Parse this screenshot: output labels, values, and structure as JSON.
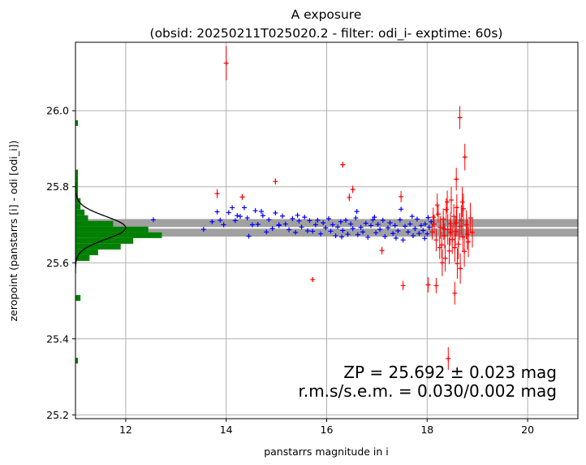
{
  "chart_data": {
    "type": "scatter",
    "title": "A exposure",
    "subtitle": "(obsid: 20250211T025020.2 - filter: odi_i- exptime: 60s)",
    "xlabel": "panstarrs magnitude in i",
    "ylabel": "zeropoint (panstarrs [i] - odi [odi_i])",
    "xlim": [
      11.0,
      21.0
    ],
    "ylim": [
      25.19,
      26.18
    ],
    "xticks": [
      "12",
      "14",
      "16",
      "18",
      "20"
    ],
    "yticks": [
      "25.2",
      "25.4",
      "25.6",
      "25.8",
      "26.0"
    ],
    "grid": true,
    "zeropoint": 25.692,
    "zeropoint_error": 0.023,
    "annotation_lines": [
      "ZP = 25.692 ± 0.023 mag",
      "r.m.s/s.e.m. = 0.030/0.002 mag"
    ],
    "colors": {
      "used_points": "#0000ff",
      "rejected_points": "#ff0000",
      "histogram": "#008000",
      "gaussian": "#000000",
      "band": "#a0a0a0",
      "zp_line": "#ffffff",
      "grid": "#b0b0b0"
    },
    "series": [
      {
        "values": [
          [
            12.55,
            25.713
          ],
          [
            13.55,
            25.688
          ],
          [
            13.72,
            25.708
          ],
          [
            13.82,
            25.734
          ],
          [
            13.88,
            25.712
          ],
          [
            13.95,
            25.7
          ],
          [
            14.05,
            25.732
          ],
          [
            14.12,
            25.745
          ],
          [
            14.18,
            25.711
          ],
          [
            14.22,
            25.724
          ],
          [
            14.28,
            25.722
          ],
          [
            14.36,
            25.745
          ],
          [
            14.42,
            25.718
          ],
          [
            14.45,
            25.67
          ],
          [
            14.52,
            25.7
          ],
          [
            14.58,
            25.737
          ],
          [
            14.63,
            25.701
          ],
          [
            14.7,
            25.735
          ],
          [
            14.73,
            25.724
          ],
          [
            14.8,
            25.681
          ],
          [
            14.85,
            25.713
          ],
          [
            14.92,
            25.69
          ],
          [
            14.98,
            25.731
          ],
          [
            15.05,
            25.698
          ],
          [
            15.12,
            25.723
          ],
          [
            15.18,
            25.702
          ],
          [
            15.25,
            25.687
          ],
          [
            15.32,
            25.716
          ],
          [
            15.38,
            25.68
          ],
          [
            15.45,
            25.71
          ],
          [
            15.5,
            25.694
          ],
          [
            15.56,
            25.72
          ],
          [
            15.62,
            25.684
          ],
          [
            15.66,
            25.711
          ],
          [
            15.72,
            25.683
          ],
          [
            15.78,
            25.7
          ],
          [
            15.82,
            25.712
          ],
          [
            15.88,
            25.676
          ],
          [
            15.93,
            25.705
          ],
          [
            15.98,
            25.692
          ],
          [
            16.04,
            25.716
          ],
          [
            16.08,
            25.683
          ],
          [
            16.12,
            25.7
          ],
          [
            16.18,
            25.671
          ],
          [
            16.22,
            25.694
          ],
          [
            16.28,
            25.708
          ],
          [
            16.32,
            25.685
          ],
          [
            16.38,
            25.712
          ],
          [
            16.42,
            25.675
          ],
          [
            16.48,
            25.702
          ],
          [
            16.52,
            25.69
          ],
          [
            16.58,
            25.718
          ],
          [
            16.62,
            25.674
          ],
          [
            16.68,
            25.693
          ],
          [
            16.72,
            25.681
          ],
          [
            16.78,
            25.704
          ],
          [
            16.82,
            25.667
          ],
          [
            16.88,
            25.698
          ],
          [
            16.92,
            25.713
          ],
          [
            16.98,
            25.679
          ],
          [
            17.02,
            25.701
          ],
          [
            17.06,
            25.688
          ],
          [
            17.12,
            25.712
          ],
          [
            17.16,
            25.669
          ],
          [
            17.22,
            25.692
          ],
          [
            17.26,
            25.705
          ],
          [
            17.32,
            25.677
          ],
          [
            17.36,
            25.698
          ],
          [
            17.42,
            25.684
          ],
          [
            17.46,
            25.713
          ],
          [
            17.52,
            25.66
          ],
          [
            17.56,
            25.696
          ],
          [
            17.62,
            25.681
          ],
          [
            17.66,
            25.702
          ],
          [
            17.72,
            25.671
          ],
          [
            17.76,
            25.69
          ],
          [
            17.8,
            25.715
          ],
          [
            17.84,
            25.677
          ],
          [
            17.88,
            25.698
          ],
          [
            17.92,
            25.685
          ],
          [
            17.96,
            25.702
          ],
          [
            18.0,
            25.676
          ],
          [
            18.04,
            25.693
          ],
          [
            18.08,
            25.708
          ],
          [
            15.05,
            25.7
          ],
          [
            15.42,
            25.725
          ],
          [
            16.3,
            25.668
          ],
          [
            16.95,
            25.72
          ],
          [
            17.38,
            25.665
          ],
          [
            17.7,
            25.722
          ],
          [
            17.95,
            25.664
          ],
          [
            18.02,
            25.719
          ],
          [
            17.48,
            25.741
          ],
          [
            16.6,
            25.735
          ]
        ]
      },
      {
        "values": [
          [
            14.0,
            26.125,
            0.045
          ],
          [
            13.82,
            25.782,
            0.012
          ],
          [
            14.32,
            25.773,
            0.008
          ],
          [
            14.98,
            25.814,
            0.008
          ],
          [
            15.72,
            25.556,
            0.006
          ],
          [
            16.32,
            25.858,
            0.008
          ],
          [
            16.52,
            25.793,
            0.01
          ],
          [
            16.45,
            25.772,
            0.01
          ],
          [
            17.48,
            25.774,
            0.015
          ],
          [
            17.52,
            25.54,
            0.012
          ],
          [
            17.1,
            25.632,
            0.01
          ],
          [
            18.18,
            25.54,
            0.02
          ],
          [
            18.02,
            25.542,
            0.02
          ],
          [
            18.42,
            25.348,
            0.03
          ],
          [
            18.58,
            25.82,
            0.03
          ],
          [
            18.75,
            25.878,
            0.035
          ],
          [
            18.65,
            25.982,
            0.03
          ],
          [
            18.55,
            25.52,
            0.03
          ],
          [
            18.72,
            25.742,
            0.04
          ],
          [
            18.1,
            25.681,
            0.02
          ],
          [
            18.14,
            25.702,
            0.025
          ],
          [
            18.18,
            25.66,
            0.03
          ],
          [
            18.22,
            25.728,
            0.022
          ],
          [
            18.26,
            25.693,
            0.03
          ],
          [
            18.29,
            25.647,
            0.035
          ],
          [
            18.32,
            25.715,
            0.028
          ],
          [
            18.35,
            25.671,
            0.033
          ],
          [
            18.38,
            25.74,
            0.03
          ],
          [
            18.41,
            25.688,
            0.04
          ],
          [
            18.44,
            25.631,
            0.035
          ],
          [
            18.47,
            25.703,
            0.03
          ],
          [
            18.5,
            25.661,
            0.038
          ],
          [
            18.53,
            25.722,
            0.032
          ],
          [
            18.56,
            25.682,
            0.04
          ],
          [
            18.59,
            25.745,
            0.035
          ],
          [
            18.62,
            25.649,
            0.04
          ],
          [
            18.65,
            25.695,
            0.036
          ],
          [
            18.68,
            25.712,
            0.04
          ],
          [
            18.71,
            25.668,
            0.038
          ],
          [
            18.74,
            25.63,
            0.04
          ],
          [
            18.78,
            25.7,
            0.038
          ],
          [
            18.82,
            25.655,
            0.04
          ],
          [
            18.86,
            25.718,
            0.04
          ],
          [
            18.9,
            25.68,
            0.04
          ],
          [
            18.2,
            25.752,
            0.03
          ],
          [
            18.36,
            25.612,
            0.035
          ],
          [
            18.48,
            25.765,
            0.035
          ],
          [
            18.6,
            25.598,
            0.04
          ],
          [
            18.25,
            25.64,
            0.03
          ],
          [
            18.4,
            25.76,
            0.03
          ],
          [
            18.55,
            25.64,
            0.038
          ],
          [
            18.7,
            25.76,
            0.04
          ],
          [
            18.12,
            25.72,
            0.025
          ],
          [
            18.33,
            25.69,
            0.03
          ],
          [
            18.46,
            25.68,
            0.035
          ],
          [
            18.58,
            25.705,
            0.035
          ],
          [
            18.8,
            25.675,
            0.04
          ],
          [
            18.66,
            25.585,
            0.04
          ],
          [
            18.3,
            25.6,
            0.035
          ]
        ]
      }
    ],
    "histogram": {
      "bin_width": 0.015,
      "bins": [
        [
          25.335,
          0.05
        ],
        [
          25.5,
          0.1
        ],
        [
          25.605,
          0.28
        ],
        [
          25.62,
          0.45
        ],
        [
          25.635,
          0.9
        ],
        [
          25.65,
          1.15
        ],
        [
          25.665,
          1.72
        ],
        [
          25.68,
          1.45
        ],
        [
          25.695,
          0.75
        ],
        [
          25.71,
          0.25
        ],
        [
          25.725,
          0.18
        ],
        [
          25.74,
          0.1
        ],
        [
          25.755,
          0.1
        ],
        [
          25.77,
          0.05
        ],
        [
          25.785,
          0.05
        ],
        [
          25.8,
          0.05
        ],
        [
          25.815,
          0.05
        ],
        [
          25.83,
          0.05
        ],
        [
          25.96,
          0.05
        ]
      ]
    },
    "gaussian": {
      "mean": 25.692,
      "sigma": 0.03,
      "peak": 1.0
    }
  }
}
